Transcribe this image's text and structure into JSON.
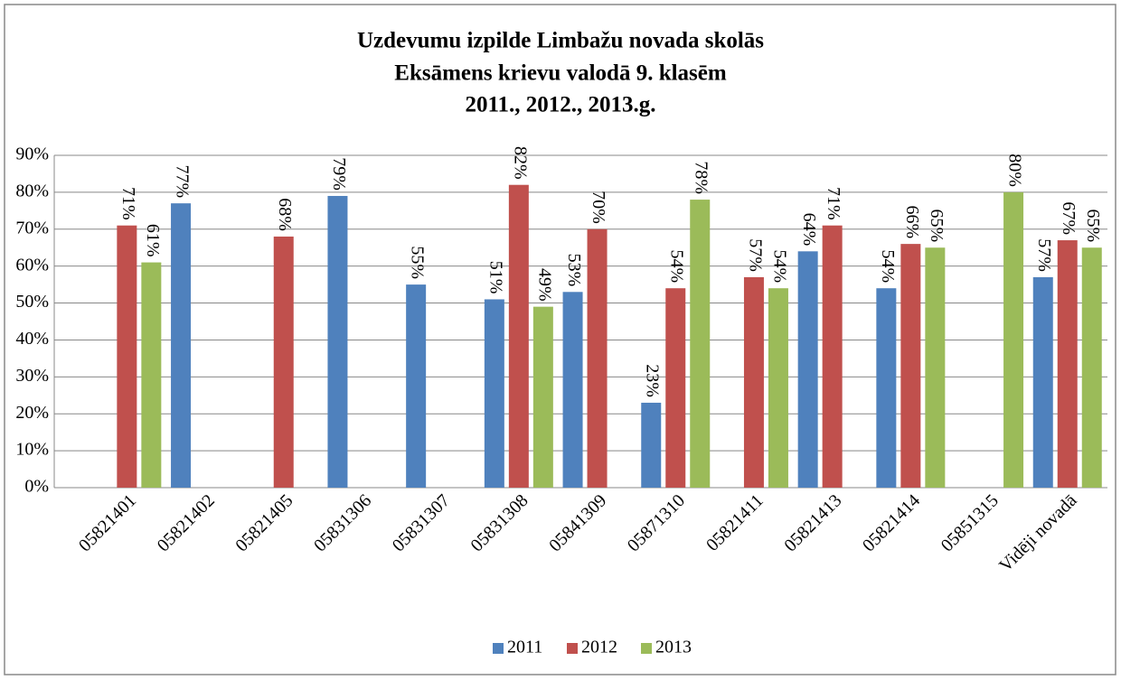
{
  "chart_data": {
    "type": "bar",
    "title": [
      "Uzdevumu izpilde Limbažu novada skolās",
      "Eksāmens krievu valodā 9. klasēm",
      "2011., 2012., 2013.g."
    ],
    "categories": [
      "05821401",
      "05821402",
      "05821405",
      "05831306",
      "05831307",
      "05831308",
      "05841309",
      "05871310",
      "05821411",
      "05821413",
      "05821414",
      "05851315",
      "Vidēji novadā"
    ],
    "series": [
      {
        "name": "2011",
        "color": "#4f81bd",
        "values": [
          null,
          77,
          null,
          79,
          55,
          51,
          53,
          23,
          null,
          64,
          54,
          null,
          57
        ],
        "value_labels": [
          null,
          "77%",
          null,
          "79%",
          "55%",
          "51%",
          "53%",
          "23%",
          null,
          "64%",
          "54%",
          null,
          "57%"
        ]
      },
      {
        "name": "2012",
        "color": "#c0504d",
        "values": [
          71,
          null,
          68,
          null,
          null,
          82,
          70,
          54,
          57,
          71,
          66,
          null,
          67
        ],
        "value_labels": [
          "71%",
          null,
          "68%",
          null,
          null,
          "82%",
          "70%",
          "54%",
          "57%",
          "71%",
          "66%",
          null,
          "67%"
        ]
      },
      {
        "name": "2013",
        "color": "#9bbb59",
        "values": [
          61,
          null,
          null,
          null,
          null,
          49,
          null,
          78,
          54,
          null,
          65,
          80,
          65
        ],
        "value_labels": [
          "61%",
          null,
          null,
          null,
          null,
          "49%",
          null,
          "78%",
          "54%",
          null,
          "65%",
          "80%",
          "65%"
        ]
      }
    ],
    "ylim": [
      0,
      90
    ],
    "yticks": [
      {
        "value": 0,
        "label": "0%"
      },
      {
        "value": 10,
        "label": "10%"
      },
      {
        "value": 20,
        "label": "20%"
      },
      {
        "value": 30,
        "label": "30%"
      },
      {
        "value": 40,
        "label": "40%"
      },
      {
        "value": 50,
        "label": "50%"
      },
      {
        "value": 60,
        "label": "60%"
      },
      {
        "value": 70,
        "label": "70%"
      },
      {
        "value": 80,
        "label": "80%"
      },
      {
        "value": 90,
        "label": "90%"
      }
    ],
    "grid": true,
    "legend": "bottom"
  }
}
